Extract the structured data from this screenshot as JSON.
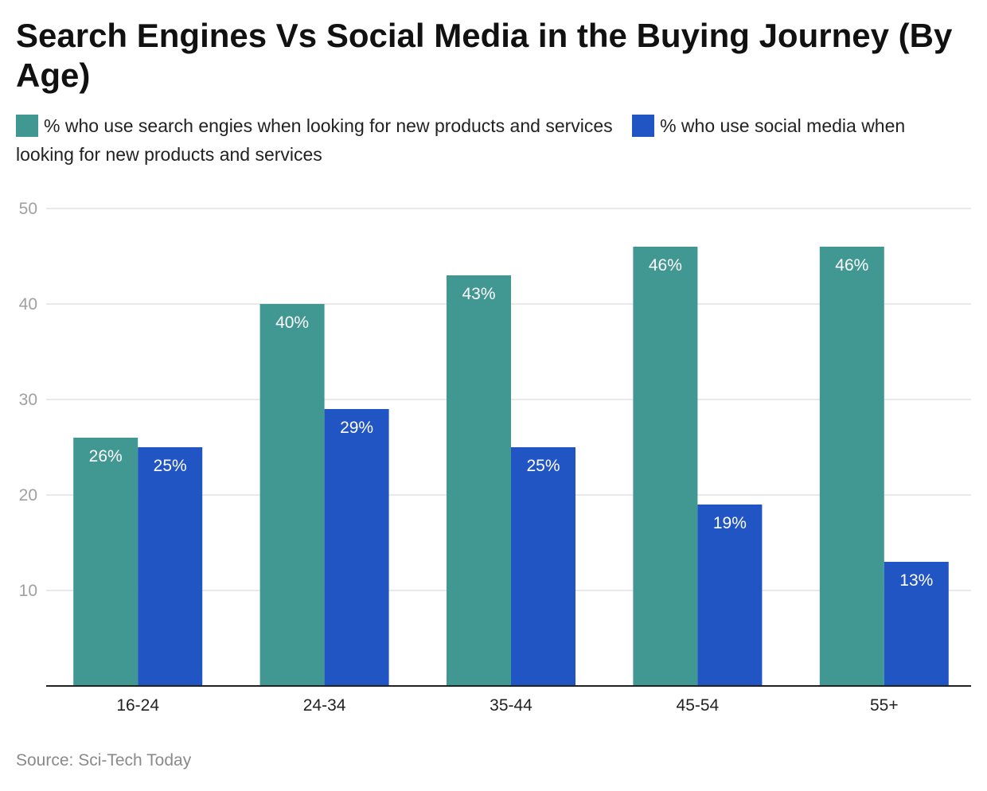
{
  "chart_data": {
    "type": "bar",
    "title": "Search Engines Vs Social Media in the Buying Journey (By Age)",
    "categories": [
      "16-24",
      "24-34",
      "35-44",
      "45-54",
      "55+"
    ],
    "series": [
      {
        "name": "% who use search engies when looking for new products and services",
        "color": "#419893",
        "values": [
          26,
          40,
          43,
          46,
          46
        ],
        "labels": [
          "26%",
          "40%",
          "43%",
          "46%",
          "46%"
        ]
      },
      {
        "name": "% who use social media when looking for new products and services",
        "color": "#2255c4",
        "values": [
          25,
          29,
          25,
          19,
          13
        ],
        "labels": [
          "25%",
          "29%",
          "25%",
          "19%",
          "13%"
        ]
      }
    ],
    "ylim": [
      0,
      50
    ],
    "yticks": [
      "10",
      "20",
      "30",
      "40",
      "50"
    ],
    "grid": true,
    "legend_placement": "top-left",
    "source": "Source: Sci-Tech Today"
  }
}
